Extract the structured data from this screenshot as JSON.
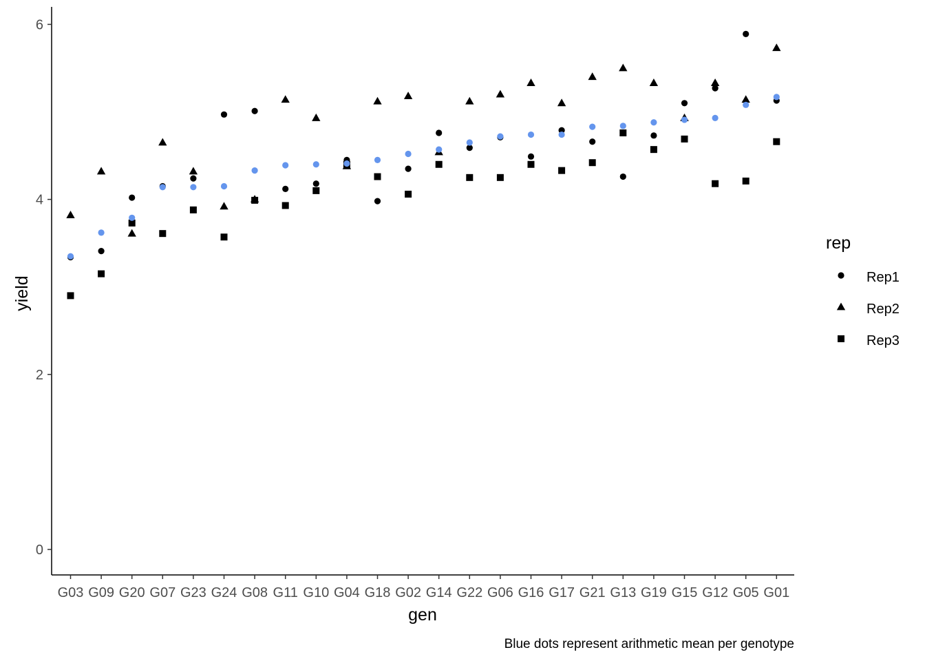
{
  "chart_data": {
    "type": "scatter",
    "xlabel": "gen",
    "ylabel": "yield",
    "caption": "Blue dots represent arithmetic mean per genotype",
    "categories": [
      "G03",
      "G09",
      "G20",
      "G07",
      "G23",
      "G24",
      "G08",
      "G11",
      "G10",
      "G04",
      "G18",
      "G02",
      "G14",
      "G22",
      "G06",
      "G16",
      "G17",
      "G21",
      "G13",
      "G19",
      "G15",
      "G12",
      "G05",
      "G01"
    ],
    "ylim": [
      -0.3,
      6.2
    ],
    "yticks": [
      0,
      2,
      4,
      6
    ],
    "ytick_labels": [
      "0",
      "2",
      "4",
      "6"
    ],
    "legend": {
      "title": "rep",
      "position": "right",
      "entries": [
        {
          "label": "Rep1",
          "shape": "circle"
        },
        {
          "label": "Rep2",
          "shape": "triangle"
        },
        {
          "label": "Rep3",
          "shape": "square"
        }
      ]
    },
    "series": [
      {
        "name": "Rep1",
        "shape": "circle",
        "color": "#000000",
        "values": [
          3.34,
          3.41,
          4.02,
          4.15,
          4.24,
          4.97,
          5.01,
          4.12,
          4.18,
          4.45,
          3.98,
          4.35,
          4.76,
          4.59,
          4.71,
          4.49,
          4.79,
          4.66,
          4.26,
          4.73,
          5.1,
          5.27,
          5.89,
          5.13
        ]
      },
      {
        "name": "Rep2",
        "shape": "triangle",
        "color": "#000000",
        "values": [
          3.82,
          4.32,
          3.61,
          4.65,
          4.32,
          3.92,
          4.0,
          5.14,
          4.93,
          4.38,
          5.12,
          5.18,
          4.54,
          5.12,
          5.2,
          5.33,
          5.1,
          5.4,
          5.5,
          5.33,
          4.93,
          5.33,
          5.14,
          5.73
        ]
      },
      {
        "name": "Rep3",
        "shape": "square",
        "color": "#000000",
        "values": [
          2.9,
          3.15,
          3.73,
          3.61,
          3.88,
          3.57,
          3.99,
          3.93,
          4.1,
          4.4,
          4.26,
          4.06,
          4.4,
          4.25,
          4.25,
          4.4,
          4.33,
          4.42,
          4.76,
          4.57,
          4.69,
          4.18,
          4.21,
          4.66
        ]
      },
      {
        "name": "",
        "shape": "circle",
        "color": "#6495ED",
        "values": [
          3.35,
          3.62,
          3.79,
          4.14,
          4.14,
          4.15,
          4.33,
          4.39,
          4.4,
          4.41,
          4.45,
          4.52,
          4.57,
          4.65,
          4.72,
          4.74,
          4.74,
          4.83,
          4.84,
          4.88,
          4.91,
          4.93,
          5.08,
          5.17
        ]
      }
    ]
  }
}
